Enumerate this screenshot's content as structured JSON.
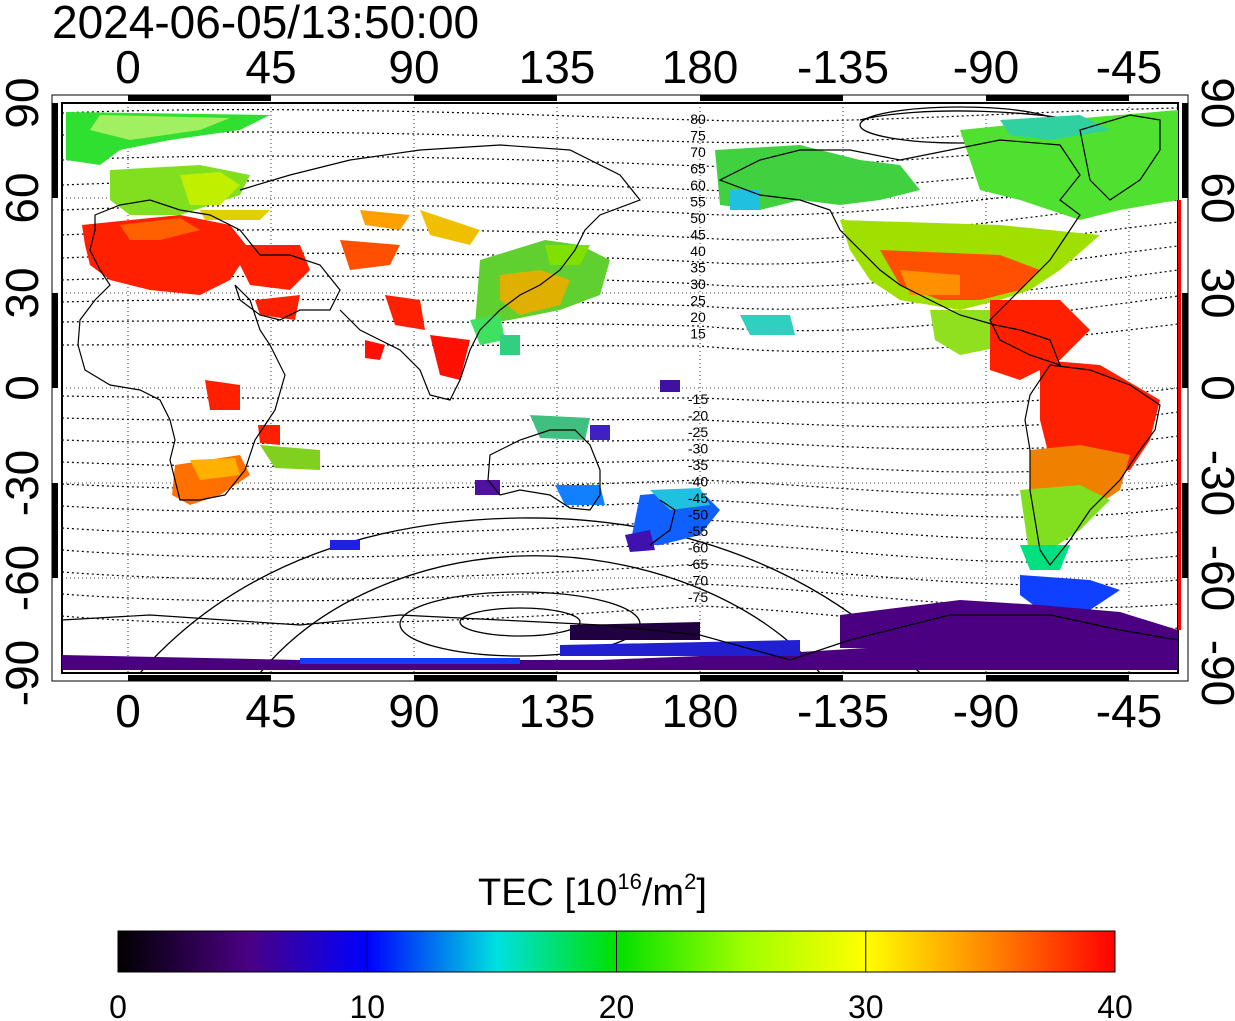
{
  "title": "2024-06-05/13:50:00",
  "map": {
    "top_lon_labels": [
      "0",
      "45",
      "90",
      "135",
      "180",
      "-135",
      "-90",
      "-45"
    ],
    "bottom_lon_labels": [
      "0",
      "45",
      "90",
      "135",
      "180",
      "-135",
      "-90",
      "-45"
    ],
    "left_lat_labels": [
      "90",
      "60",
      "30",
      "0",
      "-30",
      "-60",
      "-90"
    ],
    "right_lat_labels": [
      "90",
      "60",
      "30",
      "0",
      "-30",
      "-60",
      "-90"
    ],
    "contour_labels_north": [
      "80",
      "75",
      "70",
      "65",
      "60",
      "55",
      "50",
      "45",
      "40",
      "35",
      "30",
      "25",
      "20",
      "15"
    ],
    "contour_labels_south": [
      "-15",
      "-20",
      "-25",
      "-30",
      "-35",
      "-40",
      "-45",
      "-50",
      "-55",
      "-60",
      "-65",
      "-70",
      "-75"
    ]
  },
  "colorbar": {
    "title": "TEC  [10",
    "title_sup": "16",
    "title_unit": "/m",
    "title_unit_sup": "2",
    "title_close": "]",
    "ticks": [
      "0",
      "10",
      "20",
      "30",
      "40"
    ],
    "range": [
      0,
      40
    ]
  },
  "colors": {
    "c0": "#000000",
    "c5": "#4b0082",
    "c10": "#0000ff",
    "c15": "#00e0e0",
    "c20": "#00e000",
    "c25": "#a0ff00",
    "c30": "#ffff00",
    "c35": "#ff8000",
    "c40": "#ff0000"
  }
}
